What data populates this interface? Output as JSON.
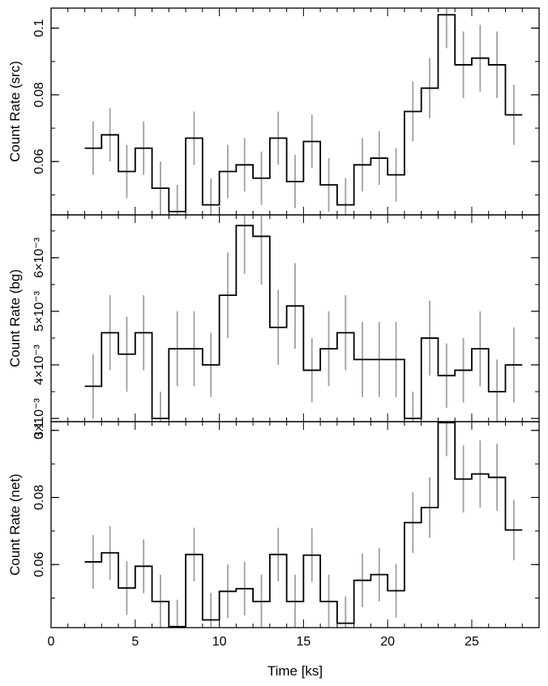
{
  "chart_data": [
    {
      "type": "line",
      "ylabel": "Count Rate (src)",
      "xlabel": "",
      "xlim": [
        0,
        29
      ],
      "ylim": [
        0.044,
        0.106
      ],
      "yticks": [
        0.06,
        0.08,
        0.1
      ],
      "ytick_labels": [
        "0.06",
        "0.08",
        "0.1"
      ],
      "bin_edges": [
        2,
        3,
        4,
        5,
        6,
        7,
        8,
        9,
        10,
        11,
        12,
        13,
        14,
        15,
        16,
        17,
        18,
        19,
        20,
        21,
        22,
        23,
        24,
        25,
        26,
        27,
        28
      ],
      "values": [
        0.064,
        0.068,
        0.057,
        0.064,
        0.052,
        0.045,
        0.067,
        0.047,
        0.057,
        0.059,
        0.055,
        0.067,
        0.054,
        0.066,
        0.053,
        0.047,
        0.059,
        0.061,
        0.056,
        0.075,
        0.082,
        0.104,
        0.089,
        0.091,
        0.089,
        0.074
      ],
      "errors": [
        0.008,
        0.008,
        0.008,
        0.008,
        0.008,
        0.008,
        0.008,
        0.008,
        0.008,
        0.008,
        0.008,
        0.008,
        0.008,
        0.008,
        0.008,
        0.008,
        0.008,
        0.008,
        0.008,
        0.009,
        0.009,
        0.01,
        0.01,
        0.01,
        0.01,
        0.009
      ]
    },
    {
      "type": "line",
      "ylabel": "Count Rate (bg)",
      "xlabel": "",
      "xlim": [
        0,
        29
      ],
      "ylim": [
        0.00294,
        0.0068
      ],
      "yticks": [
        0.003,
        0.004,
        0.005,
        0.006
      ],
      "ytick_labels": [
        "3×10⁻³",
        "4×10⁻³",
        "5×10⁻³",
        "6×10⁻³"
      ],
      "bin_edges": [
        2,
        3,
        4,
        5,
        6,
        7,
        8,
        9,
        10,
        11,
        12,
        13,
        14,
        15,
        16,
        17,
        18,
        19,
        20,
        21,
        22,
        23,
        24,
        25,
        26,
        27,
        28
      ],
      "values": [
        0.0036,
        0.0046,
        0.0042,
        0.0046,
        0.003,
        0.0043,
        0.0043,
        0.004,
        0.0053,
        0.0066,
        0.0064,
        0.0047,
        0.0051,
        0.0039,
        0.0043,
        0.0046,
        0.0041,
        0.0041,
        0.0041,
        0.003,
        0.0045,
        0.0038,
        0.0039,
        0.0043,
        0.0035,
        0.004
      ],
      "errors": [
        0.0006,
        0.0007,
        0.0007,
        0.0007,
        0.0005,
        0.0007,
        0.0007,
        0.0006,
        0.0008,
        0.0009,
        0.0009,
        0.0007,
        0.0008,
        0.0006,
        0.0007,
        0.0007,
        0.0007,
        0.0007,
        0.0007,
        0.0005,
        0.0007,
        0.0006,
        0.0006,
        0.0007,
        0.0006,
        0.0007
      ]
    },
    {
      "type": "line",
      "ylabel": "Count Rate (net)",
      "xlabel": "Time [ks]",
      "xlim": [
        0,
        29
      ],
      "ylim": [
        0.0412,
        0.1026
      ],
      "yticks": [
        0.06,
        0.08,
        0.1
      ],
      "ytick_labels": [
        "0.06",
        "0.08",
        "0.1"
      ],
      "xticks": [
        0,
        5,
        10,
        15,
        20,
        25
      ],
      "xtick_labels": [
        "0",
        "5",
        "10",
        "15",
        "20",
        "25"
      ],
      "bin_edges": [
        2,
        3,
        4,
        5,
        6,
        7,
        8,
        9,
        10,
        11,
        12,
        13,
        14,
        15,
        16,
        17,
        18,
        19,
        20,
        21,
        22,
        23,
        24,
        25,
        26,
        27,
        28
      ],
      "values": [
        0.0608,
        0.0635,
        0.053,
        0.0595,
        0.049,
        0.0415,
        0.063,
        0.0435,
        0.052,
        0.0528,
        0.049,
        0.063,
        0.049,
        0.0628,
        0.049,
        0.0425,
        0.0553,
        0.057,
        0.0522,
        0.0725,
        0.077,
        0.1023,
        0.0855,
        0.087,
        0.086,
        0.0703
      ],
      "errors": [
        0.008,
        0.008,
        0.008,
        0.008,
        0.008,
        0.008,
        0.008,
        0.008,
        0.008,
        0.008,
        0.008,
        0.008,
        0.008,
        0.008,
        0.008,
        0.008,
        0.008,
        0.008,
        0.008,
        0.009,
        0.009,
        0.01,
        0.01,
        0.01,
        0.01,
        0.009
      ]
    }
  ],
  "colors": {
    "step_line": "#000000",
    "error_bar": "#a0a0a0",
    "frame": "#000000",
    "background": "#ffffff"
  }
}
